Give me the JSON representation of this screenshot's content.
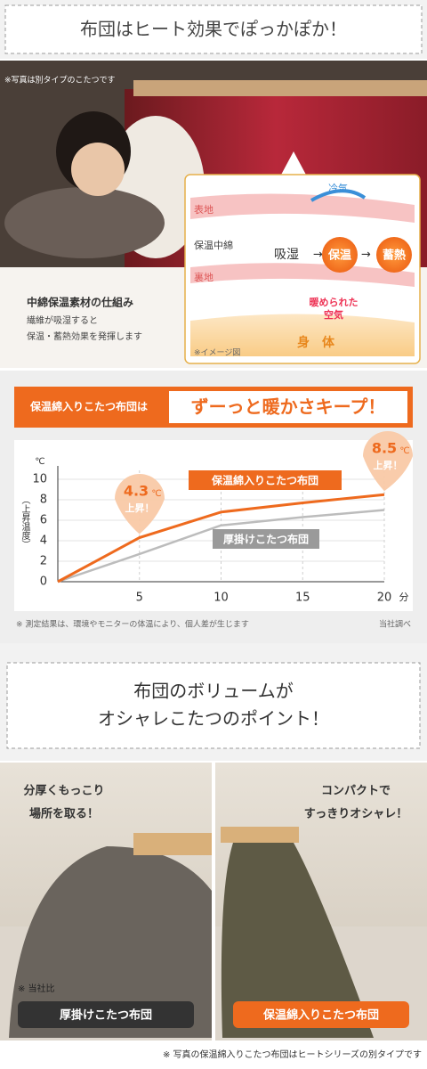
{
  "header": {
    "title": "布団はヒート効果でぽっかぽか！"
  },
  "photo": {
    "note": "※写真は別タイプのこたつです",
    "caption_title": "中綿保温素材の仕組み",
    "caption_lines": [
      "繊維が吸湿すると",
      "保温・蓄熱効果を発揮します"
    ]
  },
  "diagram": {
    "outer": "表地",
    "middle": "保温中綿",
    "inner": "裏地",
    "cold": "冷気",
    "absorb": "吸湿",
    "keep": "保温",
    "store": "蓄熱",
    "warm_air": [
      "暖められた",
      "空気"
    ],
    "body": "身　体",
    "note": "※イメージ図"
  },
  "banner": {
    "lead": "保温綿入りこたつ布団は",
    "main": "ずーっと暖かさキープ！"
  },
  "chart": {
    "type": "line",
    "y_unit": "℃",
    "y_label": "（上昇温度）",
    "x_unit": "分",
    "x": [
      0,
      5,
      10,
      15,
      20
    ],
    "xlim": [
      0,
      20
    ],
    "xticks": [
      5,
      10,
      15,
      20
    ],
    "ylim": [
      0,
      10
    ],
    "yticks": [
      0,
      2,
      4,
      6,
      8,
      10
    ],
    "series": [
      {
        "name": "保温綿入りこたつ布団",
        "color": "#ee6a1e",
        "values": [
          0,
          4.3,
          6.8,
          7.7,
          8.5
        ]
      },
      {
        "name": "厚掛けこたつ布団",
        "color": "#bcbcbc",
        "values": [
          0,
          2.7,
          5.5,
          6.3,
          7.0
        ]
      }
    ],
    "callouts": [
      {
        "value": "4.3",
        "unit": "℃",
        "text": "上昇！"
      },
      {
        "value": "8.5",
        "unit": "℃",
        "text": "上昇！"
      }
    ],
    "note": "※ 測定結果は、環境やモニターの体温により、個人差が生じます",
    "source": "当社調べ"
  },
  "volume": {
    "title_lines": [
      "布団のボリュームが",
      "オシャレこたつのポイント！"
    ],
    "left": {
      "lines": [
        "分厚くもっこり",
        "場所を取る！"
      ],
      "label": "厚掛けこたつ布団"
    },
    "right": {
      "lines": [
        "コンパクトで",
        "すっきりオシャレ！"
      ],
      "label": "保温綿入りこたつ布団"
    },
    "compare": "※ 当社比"
  },
  "footer": "※ 写真の保温綿入りこたつ布団はヒートシリーズの別タイプです"
}
